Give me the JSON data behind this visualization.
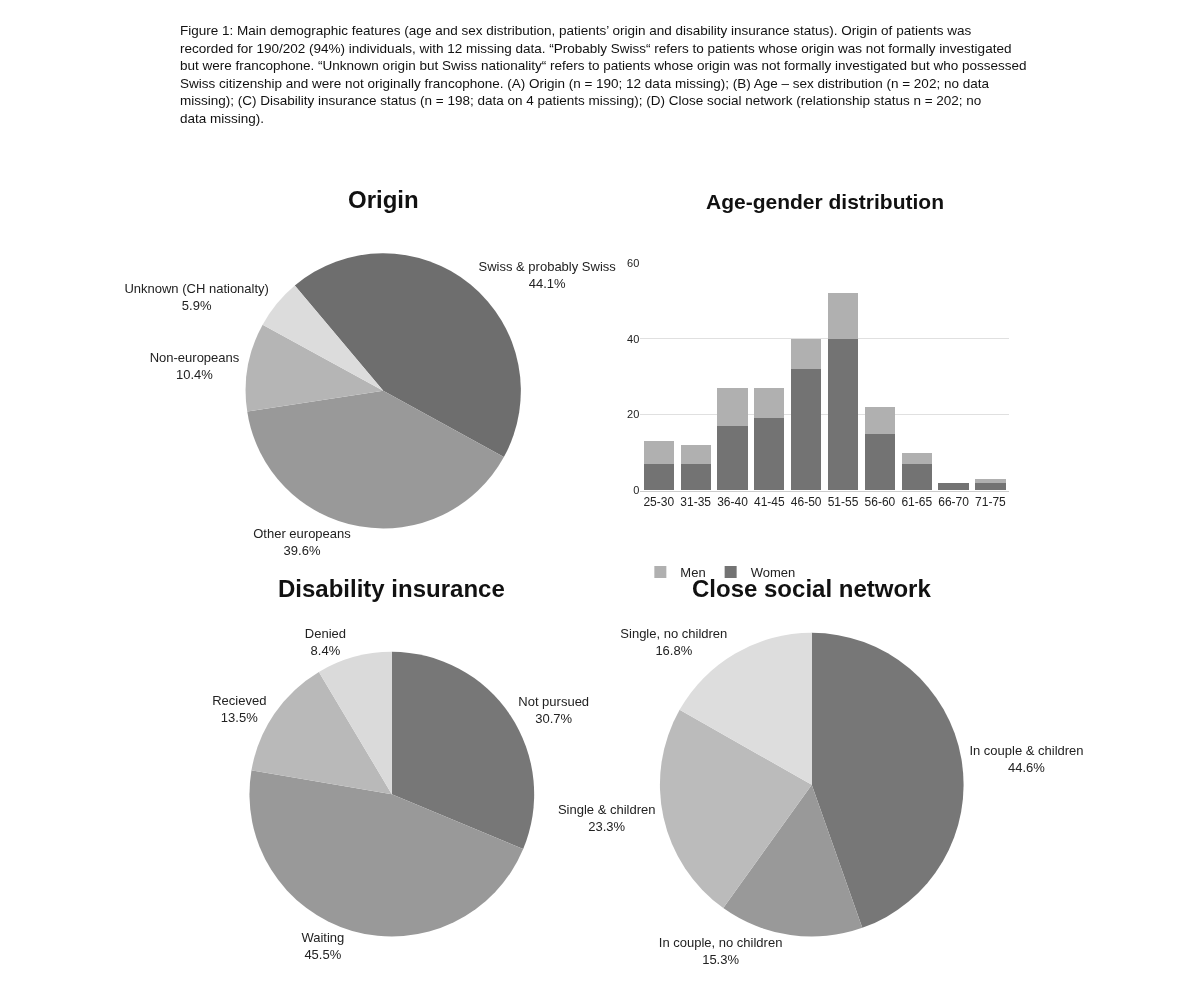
{
  "chart_data": [
    {
      "type": "pie",
      "title": "Origin",
      "categories": [
        "Swiss & probably Swiss",
        "Other europeans",
        "Non-europeans",
        "Unknown (CH nationalty)"
      ],
      "values": [
        44.1,
        39.6,
        10.4,
        5.9
      ],
      "value_labels": [
        "44.1%",
        "39.6%",
        "10.4%",
        "5.9%"
      ],
      "colors": [
        "#6e6e6e",
        "#999999",
        "#b5b5b5",
        "#dcdcdc"
      ],
      "legend": false,
      "annotations": [
        "Figure 1: Main demographic features (age and sex distribution, patients’ origin and disability insurance status). Origin of patients was recorded for 190/202 (94%) individuals, with 12 missing data. “Probably Swiss“ refers to patients whose origin was not formally investigated but were francophone. “Unknown origin but Swiss nationality“ refers to patients whose origin was not formally investigated but who possessed Swiss citizenship and were not originally francophone. (A) Origin (n = 190; 12 data missing); (B) Age – sex distribution (n = 202; no data missing); (C) Disability insurance status (n = 198; data on 4 patients missing); (D) Close social network (relationship status n = 202; no data missing)."
      ]
    },
    {
      "type": "bar",
      "title": "Age-gender distribution",
      "stacked": true,
      "categories": [
        "25-30",
        "31-35",
        "36-40",
        "41-45",
        "46-50",
        "51-55",
        "56-60",
        "61-65",
        "66-70",
        "71-75"
      ],
      "series": [
        {
          "name": "Women",
          "color": "#737373",
          "values": [
            7,
            7,
            17,
            19,
            32,
            40,
            15,
            7,
            2,
            2
          ]
        },
        {
          "name": "Men",
          "color": "#b0b0b0",
          "values": [
            6,
            5,
            10,
            8,
            8,
            12,
            7,
            3,
            0,
            1
          ]
        }
      ],
      "ylim": [
        0,
        60
      ],
      "yticks": [
        0,
        20,
        40,
        60
      ],
      "grid": "y",
      "legend": "bottom left"
    },
    {
      "type": "pie",
      "title": "Disability insurance",
      "categories": [
        "Not pursued",
        "Waiting",
        "Recieved",
        "Denied"
      ],
      "values": [
        30.7,
        45.5,
        13.5,
        8.4
      ],
      "value_labels": [
        "30.7%",
        "45.5%",
        "13.5%",
        "8.4%"
      ],
      "colors": [
        "#777777",
        "#999999",
        "#b9b9b9",
        "#dadada"
      ],
      "legend": false
    },
    {
      "type": "pie",
      "title": "Close social network",
      "categories": [
        "In couple & children",
        "In couple, no children",
        "Single & children",
        "Single, no children"
      ],
      "values": [
        44.6,
        15.3,
        23.3,
        16.8
      ],
      "value_labels": [
        "44.6%",
        "15.3%",
        "23.3%",
        "16.8%"
      ],
      "colors": [
        "#777777",
        "#999999",
        "#bbbbbb",
        "#dddddd"
      ],
      "legend": false
    }
  ]
}
